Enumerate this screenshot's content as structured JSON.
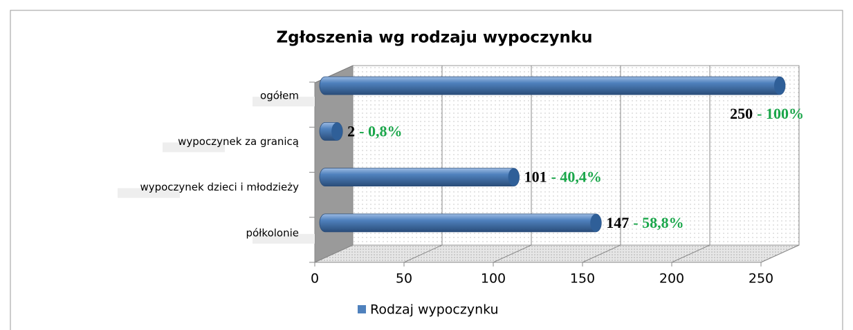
{
  "chart_data": {
    "type": "bar3d",
    "title": "Zgłoszenia wg rodzaju wypoczynku",
    "categories": [
      "półkolonie",
      "wypoczynek dzieci i młodzieży",
      "wypoczynek za granicą",
      "ogółem"
    ],
    "series": [
      {
        "name": "Rodzaj wypoczynku",
        "color": "#4f81bd",
        "values": [
          147,
          101,
          2,
          250
        ]
      }
    ],
    "percent_labels": [
      "- 58,8%",
      "- 40,4%",
      "- 0,8%",
      "- 100%"
    ],
    "xlim": [
      0,
      250
    ],
    "xticks": [
      0,
      50,
      100,
      150,
      200,
      250
    ],
    "grid": true,
    "legend": "bottom"
  }
}
